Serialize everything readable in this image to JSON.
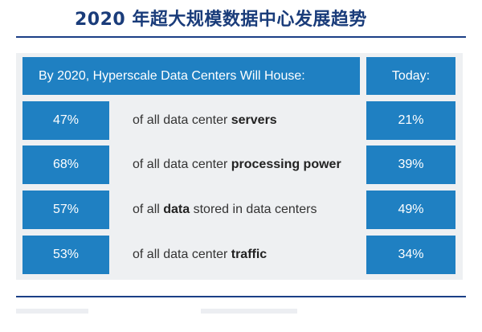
{
  "title": "2020 年超大规模数据中心发展趋势",
  "table": {
    "header_main": "By 2020, Hyperscale Data Centers Will House:",
    "header_today": "Today:",
    "rows": [
      {
        "value_2020": "47%",
        "desc_before": "of all data center ",
        "desc_bold": "servers",
        "desc_after": "",
        "value_today": "21%"
      },
      {
        "value_2020": "68%",
        "desc_before": "of all data center ",
        "desc_bold": "processing power",
        "desc_after": "",
        "value_today": "39%"
      },
      {
        "value_2020": "57%",
        "desc_before": "of all ",
        "desc_bold": "data",
        "desc_after": " stored in data centers",
        "value_today": "49%"
      },
      {
        "value_2020": "53%",
        "desc_before": "of all data center ",
        "desc_bold": "traffic",
        "desc_after": "",
        "value_today": "34%"
      }
    ]
  },
  "colors": {
    "cell_blue": "#1f80c2",
    "title_navy": "#1a3c7a",
    "rule_navy": "#1b3f86",
    "panel_grey": "#eef0f2"
  }
}
